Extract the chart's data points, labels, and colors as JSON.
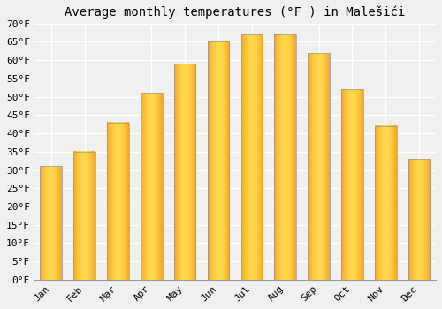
{
  "title": "Average monthly temperatures (°F ) in Malešići",
  "months": [
    "Jan",
    "Feb",
    "Mar",
    "Apr",
    "May",
    "Jun",
    "Jul",
    "Aug",
    "Sep",
    "Oct",
    "Nov",
    "Dec"
  ],
  "values": [
    31,
    35,
    43,
    51,
    59,
    65,
    67,
    67,
    62,
    52,
    42,
    33
  ],
  "bar_color_center": "#FFD84D",
  "bar_color_edge": "#F5A623",
  "bar_edge_color": "#999999",
  "ylim": [
    0,
    70
  ],
  "yticks": [
    0,
    5,
    10,
    15,
    20,
    25,
    30,
    35,
    40,
    45,
    50,
    55,
    60,
    65,
    70
  ],
  "ytick_labels": [
    "0°F",
    "5°F",
    "10°F",
    "15°F",
    "20°F",
    "25°F",
    "30°F",
    "35°F",
    "40°F",
    "45°F",
    "50°F",
    "55°F",
    "60°F",
    "65°F",
    "70°F"
  ],
  "background_color": "#f0f0f0",
  "plot_bg_color": "#f0f0f0",
  "grid_color": "#ffffff",
  "title_fontsize": 10,
  "tick_fontsize": 8,
  "bar_width": 0.65,
  "figsize": [
    5.0,
    3.5
  ],
  "dpi": 100
}
